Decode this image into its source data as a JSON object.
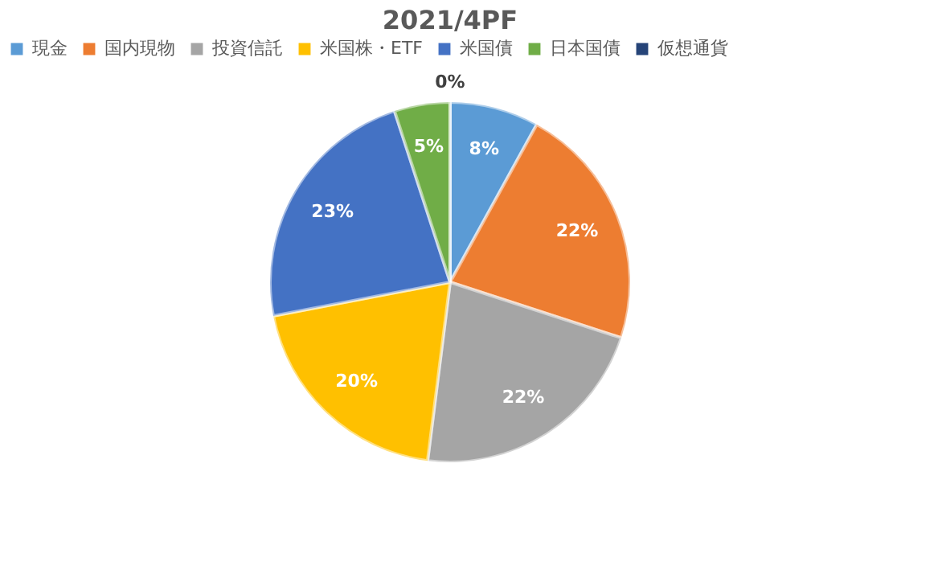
{
  "chart_data": {
    "type": "pie",
    "title": "2021/4PF",
    "categories": [
      "現金",
      "国内現物",
      "投資信託",
      "米国株・ETF",
      "米国債",
      "日本国債",
      "仮想通貨"
    ],
    "values": [
      8,
      22,
      22,
      20,
      23,
      5,
      0
    ],
    "value_labels": [
      "8%",
      "22%",
      "22%",
      "20%",
      "23%",
      "5%",
      "0%"
    ],
    "colors": [
      "#5b9bd5",
      "#ed7d31",
      "#a5a5a5",
      "#ffc000",
      "#4472c4",
      "#70ad47",
      "#264478"
    ],
    "legend": "top"
  }
}
